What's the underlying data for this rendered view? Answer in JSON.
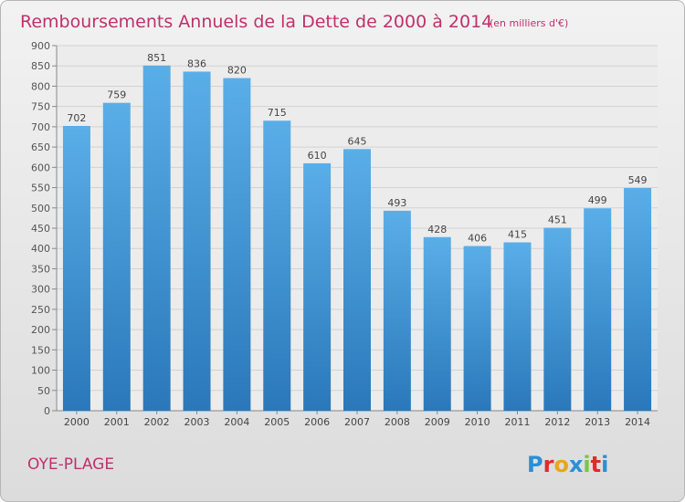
{
  "header": {
    "title": "Remboursements Annuels de la Dette de 2000 à 2014",
    "subtitle": "(en milliers d'€)"
  },
  "footer": {
    "place": "OYE-PLAGE",
    "brand": "Proxiti"
  },
  "colors": {
    "title": "#c0306a",
    "bar_top": "#5aaee8",
    "bar_bottom": "#2a78ba",
    "brand_letters": [
      "#2a8fd6",
      "#e02a2a",
      "#e8a61e",
      "#2a8fd6",
      "#7cc442",
      "#e02a2a",
      "#2a8fd6"
    ]
  },
  "chart_data": {
    "type": "bar",
    "title": "Remboursements Annuels de la Dette de 2000 à 2014",
    "xlabel": "",
    "ylabel": "",
    "categories": [
      "2000",
      "2001",
      "2002",
      "2003",
      "2004",
      "2005",
      "2006",
      "2007",
      "2008",
      "2009",
      "2010",
      "2011",
      "2012",
      "2013",
      "2014"
    ],
    "values": [
      702,
      759,
      851,
      836,
      820,
      715,
      610,
      645,
      493,
      428,
      406,
      415,
      451,
      499,
      549
    ],
    "ylim": [
      0,
      900
    ],
    "yticks": [
      0,
      50,
      100,
      150,
      200,
      250,
      300,
      350,
      400,
      450,
      500,
      550,
      600,
      650,
      700,
      750,
      800,
      850,
      900
    ],
    "grid": true,
    "legend": "none"
  }
}
